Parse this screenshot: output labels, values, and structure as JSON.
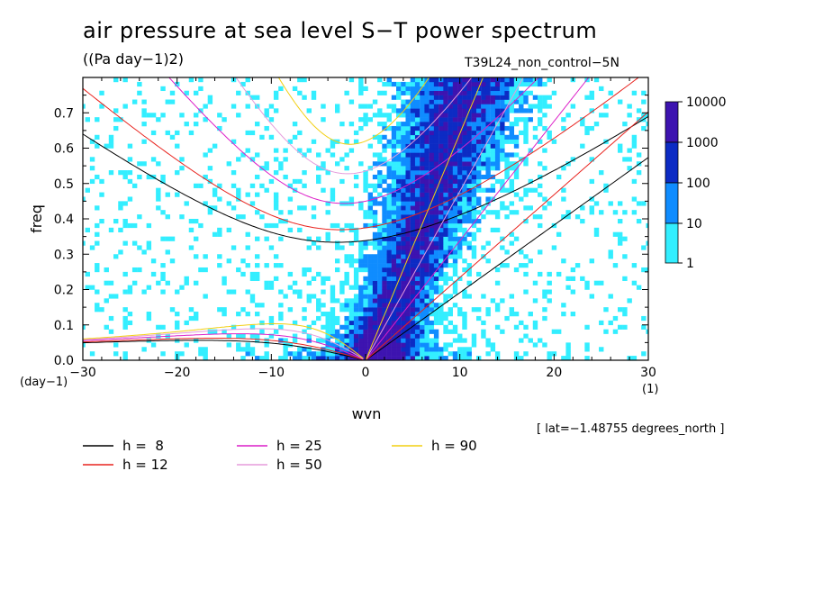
{
  "title": "air pressure at sea level S−T power spectrum",
  "units": "((Pa day−1)2)",
  "run": "T39L24_non_control−5N",
  "latitude_note": "[ lat=−1.48755 degrees_north ]",
  "x_unit": "(1)",
  "y_unit": "(day−1)",
  "chart_data": {
    "type": "heatmap",
    "xlabel": "wvn",
    "ylabel": "freq",
    "xlim": [
      -30,
      30
    ],
    "ylim": [
      0,
      0.8
    ],
    "x_ticks": [
      "−30",
      "−20",
      "−10",
      "0",
      "10",
      "20",
      "30"
    ],
    "x_tick_values": [
      -30,
      -20,
      -10,
      0,
      10,
      20,
      30
    ],
    "y_ticks": [
      "0.0",
      "0.1",
      "0.2",
      "0.3",
      "0.4",
      "0.5",
      "0.6",
      "0.7"
    ],
    "y_tick_values": [
      0,
      0.1,
      0.2,
      0.3,
      0.4,
      0.5,
      0.6,
      0.7
    ],
    "colorbar": {
      "levels": [
        "1",
        "10",
        "100",
        "1000",
        "10000"
      ],
      "colors": [
        "#33eeff",
        "#0f8cff",
        "#0c2bc4",
        "#3d13b0"
      ]
    },
    "dispersion_curves": [
      {
        "name": "h =  8",
        "h": 8,
        "color": "#000000"
      },
      {
        "name": "h = 12",
        "h": 12,
        "color": "#e8231e"
      },
      {
        "name": "h = 25",
        "h": 25,
        "color": "#dc1fc8"
      },
      {
        "name": "h = 50",
        "h": 50,
        "color": "#e59bdc"
      },
      {
        "name": "h = 90",
        "h": 90,
        "color": "#f2cf12"
      }
    ]
  }
}
